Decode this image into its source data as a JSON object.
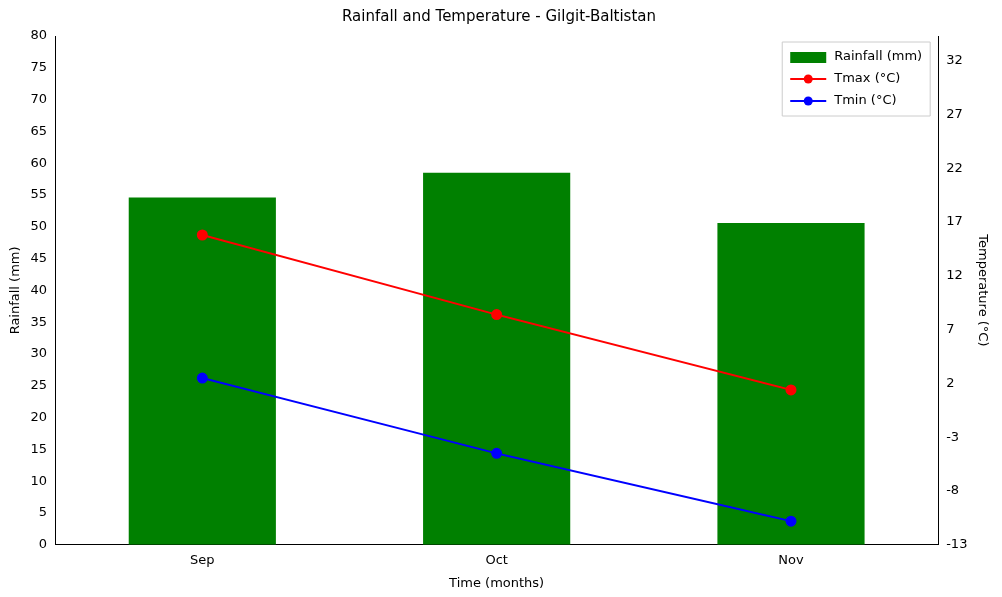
{
  "chart_data": {
    "type": "bar",
    "title": "Rainfall and Temperature - Gilgit-Baltistan",
    "xlabel": "Time (months)",
    "ylabel": "Rainfall (mm)",
    "y2label": "Temperature (°C)",
    "categories": [
      "Sep",
      "Oct",
      "Nov"
    ],
    "series": [
      {
        "name": "Rainfall (mm)",
        "color": "#008000",
        "values": [
          54.6,
          58.5,
          50.6
        ]
      },
      {
        "name": "Tmax (°C)",
        "type": "line",
        "axis": "y2",
        "color": "#ff0000",
        "values": [
          15.8,
          8.4,
          1.4
        ]
      },
      {
        "name": "Tmin (°C)",
        "type": "line",
        "axis": "y2",
        "color": "#0000ff",
        "values": [
          2.5,
          -4.5,
          -10.8
        ]
      }
    ],
    "ylim": [
      0,
      80
    ],
    "yticks": [
      0,
      5,
      10,
      15,
      20,
      25,
      30,
      35,
      40,
      45,
      50,
      55,
      60,
      65,
      70,
      75,
      80
    ],
    "y2lim": [
      -13,
      34.3
    ],
    "y2ticks": [
      -13,
      -8,
      -3,
      2,
      7,
      12,
      17,
      22,
      27,
      32
    ],
    "marker": "circle",
    "line_style": "solid",
    "legend": "top right",
    "grid": false
  }
}
